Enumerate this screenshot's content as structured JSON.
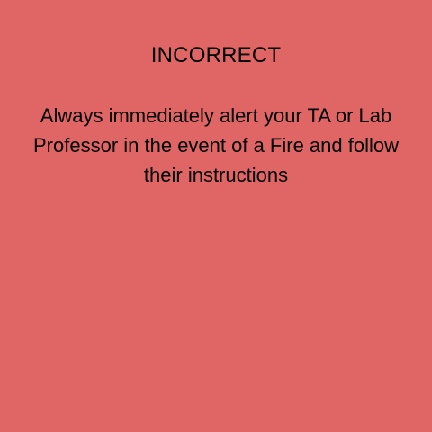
{
  "feedback": {
    "status": "INCORRECT",
    "message": "Always immediately alert your TA or Lab Professor in the event of a Fire and follow their instructions",
    "background_color": "#e06666"
  }
}
